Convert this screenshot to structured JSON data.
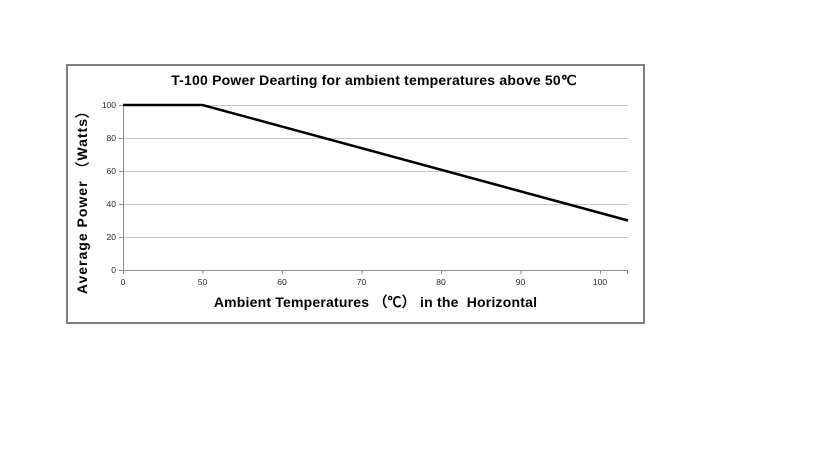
{
  "chart_data": {
    "type": "line",
    "title": "T-100 Power Dearting for ambient temperatures above 50℃",
    "xlabel": "Ambient Temperatures （℃） in the  Horizontal",
    "ylabel": "Average Power （Watts）",
    "x_ticks": [
      0,
      50,
      60,
      70,
      80,
      90,
      100
    ],
    "y_ticks": [
      0,
      20,
      40,
      60,
      80,
      100
    ],
    "ylim": [
      0,
      100
    ],
    "grid": true,
    "legend": "none",
    "axis_note": "x-axis ticks 0,50,60,70,80,90,100 are evenly spaced (category-style axis); plotted line extends slightly past the 100 tick to the plot edge",
    "series": [
      {
        "name": "Average Power (Watts)",
        "points": [
          {
            "x": 0,
            "y": 100
          },
          {
            "x": 50,
            "y": 100
          },
          {
            "x": 100,
            "y": 30
          }
        ],
        "color": "#000000",
        "width": 2.5
      }
    ]
  },
  "colors": {
    "box_border": "#7f7f7f",
    "gridline": "#c6c6c6",
    "axis_line": "#8c8c8c",
    "series_line": "#000000",
    "text": "#000000",
    "tick_text": "#262626",
    "background": "#ffffff"
  }
}
